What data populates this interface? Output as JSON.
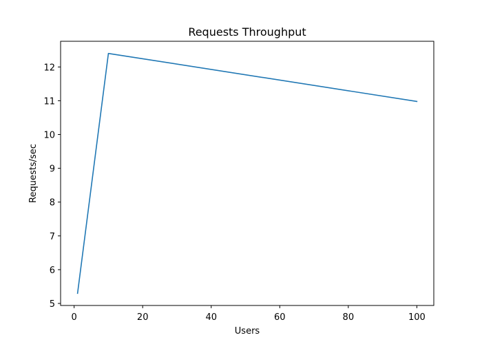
{
  "chart_data": {
    "type": "line",
    "title": "Requests Throughput",
    "xlabel": "Users",
    "ylabel": "Requests/sec",
    "xlim": [
      -3.95,
      104.95
    ],
    "ylim": [
      4.94,
      12.76
    ],
    "xticks": [
      0,
      20,
      40,
      60,
      80,
      100
    ],
    "yticks": [
      5,
      6,
      7,
      8,
      9,
      10,
      11,
      12
    ],
    "grid": false,
    "legend": "none",
    "series": [
      {
        "color": "#1f77b4",
        "x": [
          1,
          10,
          100
        ],
        "y": [
          5.3,
          12.4,
          10.98
        ]
      }
    ]
  }
}
